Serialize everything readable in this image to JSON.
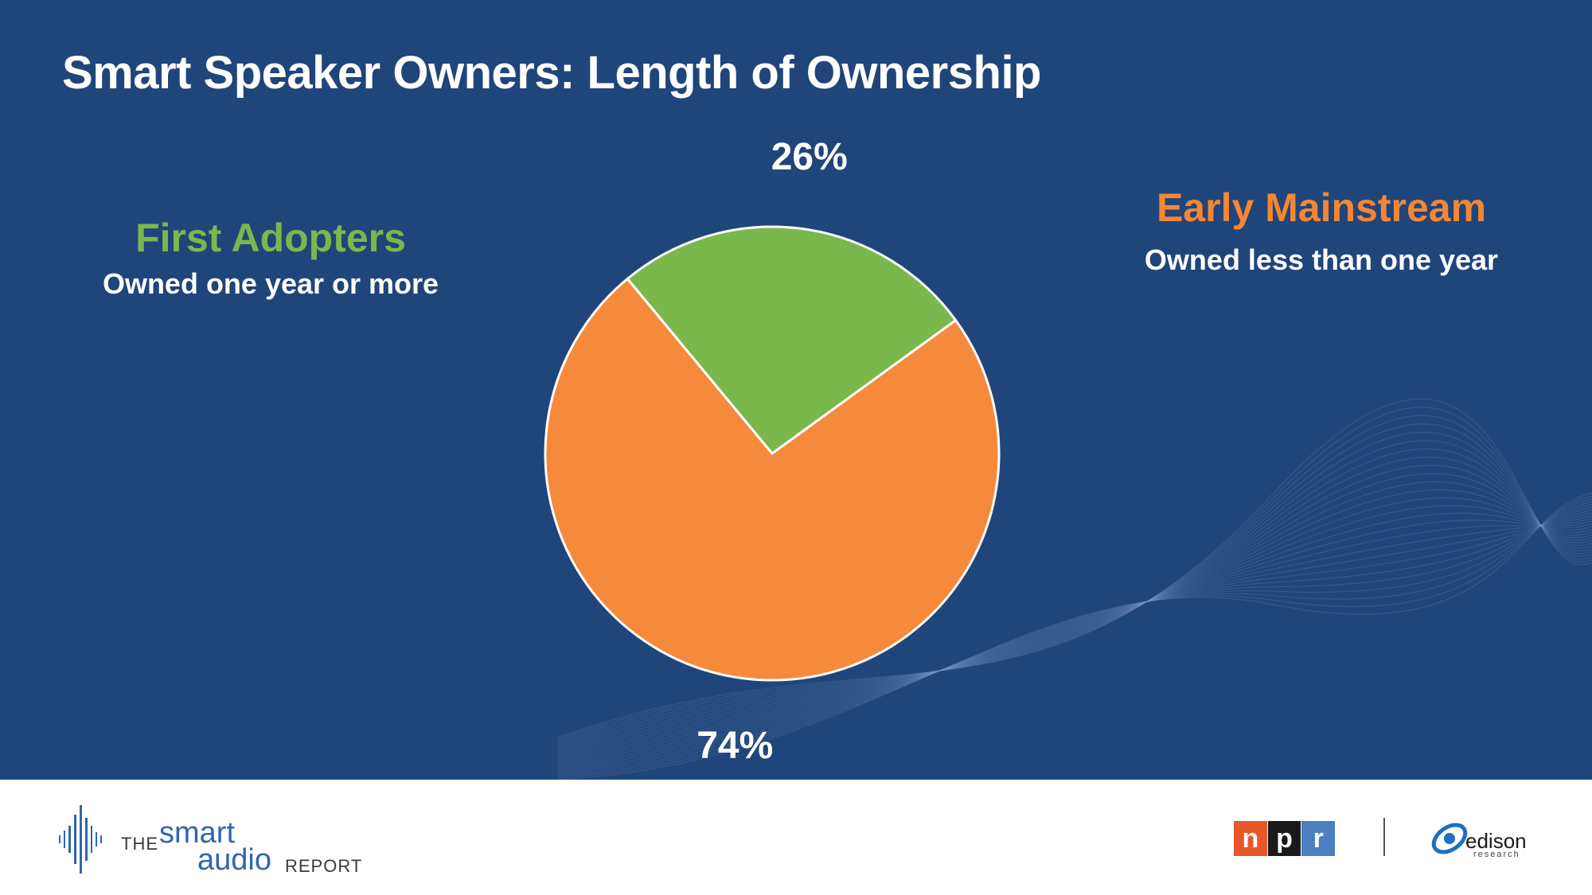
{
  "title": "Smart Speaker Owners: Length of Ownership",
  "groups": {
    "first_adopters": {
      "title": "First Adopters",
      "subtitle": "Owned one year or more"
    },
    "early_mainstream": {
      "title": "Early Mainstream",
      "subtitle": "Owned less than one year"
    }
  },
  "chart_data": {
    "type": "pie",
    "slices": [
      {
        "label": "Early Mainstream",
        "value": 74,
        "display": "74%",
        "color": "#f58a3c"
      },
      {
        "label": "First Adopters",
        "value": 26,
        "display": "26%",
        "color": "#7ab84e"
      }
    ],
    "start_angle_deg": -36,
    "direction": "clockwise",
    "legend": "none"
  },
  "colors": {
    "background": "#20457b",
    "orange": "#f58633",
    "green": "#7ab84e",
    "text": "#ffffff"
  },
  "footer": {
    "sar_logo": {
      "the": "THE",
      "smart": "smart",
      "audio": "audio",
      "report": "REPORT"
    },
    "npr_logo": {
      "letters": [
        "n",
        "p",
        "r"
      ],
      "colors": [
        "#e8572a",
        "#1a1a1a",
        "#4a7fc1"
      ]
    },
    "edison_logo": {
      "name": "edison",
      "sub": "research"
    }
  }
}
